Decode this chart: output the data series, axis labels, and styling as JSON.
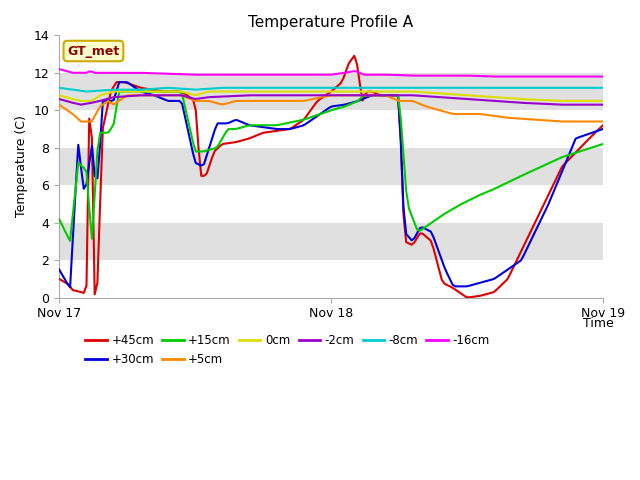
{
  "title": "Temperature Profile A",
  "xlabel": "Time",
  "ylabel": "Temperature (C)",
  "ylim": [
    0,
    14
  ],
  "yticks": [
    0,
    2,
    4,
    6,
    8,
    10,
    12,
    14
  ],
  "gt_met_label": "GT_met",
  "colors": {
    "+45cm": "#dd0000",
    "+30cm": "#0000dd",
    "+15cm": "#00cc00",
    "+5cm": "#ff8800",
    "0cm": "#dddd00",
    "-2cm": "#9900cc",
    "-8cm": "#00cccc",
    "-16cm": "#ff00ff"
  },
  "band_colors": [
    "#ffffff",
    "#e0e0e0"
  ],
  "band_ranges": [
    [
      12,
      14
    ],
    [
      10,
      12
    ],
    [
      8,
      10
    ],
    [
      6,
      8
    ],
    [
      4,
      6
    ],
    [
      2,
      4
    ],
    [
      0,
      2
    ]
  ]
}
